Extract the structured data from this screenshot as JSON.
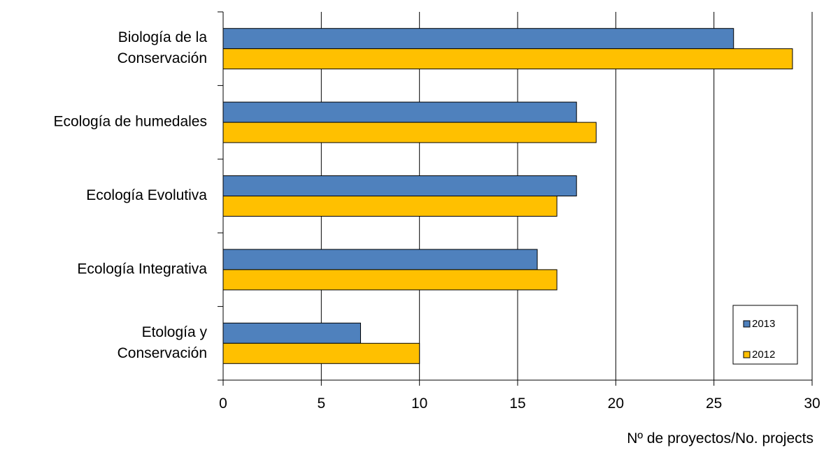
{
  "chart_data": {
    "type": "bar",
    "orientation": "horizontal",
    "categories": [
      [
        "Biología de la",
        "Conservación"
      ],
      [
        "Ecología de humedales"
      ],
      [
        "Ecología Evolutiva"
      ],
      [
        "Ecología Integrativa"
      ],
      [
        "Etología y",
        "Conservación"
      ]
    ],
    "series": [
      {
        "name": "2013",
        "values": [
          26,
          18,
          18,
          16,
          7
        ],
        "color": "#4F81BD"
      },
      {
        "name": "2012",
        "values": [
          29,
          19,
          17,
          17,
          10
        ],
        "color": "#FFC000"
      }
    ],
    "xlim": [
      0,
      30
    ],
    "xticks": [
      0,
      5,
      10,
      15,
      20,
      25,
      30
    ],
    "xlabel": "Nº de proyectos/No. projects",
    "title": "",
    "grid": "vertical",
    "legend_position": "bottom-right"
  }
}
